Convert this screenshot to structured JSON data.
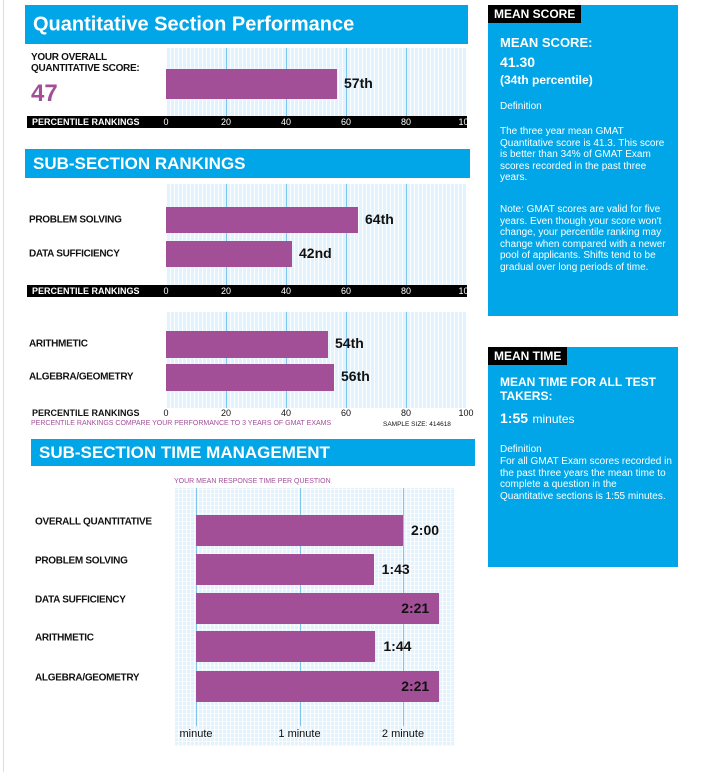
{
  "header": {
    "title": "Quantitative Section Performance"
  },
  "overall": {
    "label_line1": "YOUR OVERALL",
    "label_line2": "QUANTITATIVE SCORE:",
    "score": "47",
    "percentile_label": "57th"
  },
  "axis": {
    "title": "PERCENTILE RANKINGS",
    "ticks": [
      "0",
      "20",
      "40",
      "60",
      "80",
      "100"
    ]
  },
  "subsection": {
    "title": "SUB-SECTION RANKINGS",
    "footnote": "PERCENTILE RANKINGS COMPARE YOUR PERFORMANCE TO 3 YEARS OF GMAT EXAMS",
    "sample_size": "SAMPLE SIZE: 414618"
  },
  "time": {
    "title": "SUB-SECTION TIME MANAGEMENT",
    "subtitle": "YOUR MEAN RESPONSE TIME PER QUESTION",
    "ticks": [
      "minute",
      "1 minute",
      "2 minute"
    ]
  },
  "mean_score": {
    "tag": "MEAN SCORE",
    "heading": "MEAN SCORE:",
    "value": "41.30",
    "percentile": "(34th percentile)",
    "definition_label": "Definition",
    "definition": "The three year mean GMAT Quantitative score is 41.3. This score is better than 34% of GMAT Exam scores recorded in the past three years.",
    "note": "Note:  GMAT scores are valid for five years. Even though your score won't change, your percentile ranking may change when compared with a newer pool of applicants.  Shifts tend to be gradual over long periods of time."
  },
  "mean_time": {
    "tag": "MEAN TIME",
    "heading": "MEAN TIME FOR ALL TEST TAKERS:",
    "value": "1:55",
    "unit": "minutes",
    "definition_label": "Definition",
    "definition": "For all GMAT Exam scores recorded in the past three years the mean time to complete a question in the Quantitative sections is 1:55 minutes."
  },
  "colors": {
    "banner": "#00a6e8",
    "bar": "#a34f98",
    "grid": "#e3f3fd",
    "subtitle": "#a34f98"
  },
  "chart_data": [
    {
      "type": "bar",
      "categories": [
        "YOUR OVERALL QUANTITATIVE SCORE"
      ],
      "values": [
        57
      ],
      "value_labels": [
        "57th"
      ],
      "xlabel": "PERCENTILE RANKINGS",
      "xlim": [
        0,
        100
      ]
    },
    {
      "type": "bar",
      "categories": [
        "PROBLEM SOLVING",
        "DATA SUFFICIENCY"
      ],
      "values": [
        64,
        42
      ],
      "value_labels": [
        "64th",
        "42nd"
      ],
      "xlabel": "PERCENTILE RANKINGS",
      "xlim": [
        0,
        100
      ]
    },
    {
      "type": "bar",
      "categories": [
        "ARITHMETIC",
        "ALGEBRA/GEOMETRY"
      ],
      "values": [
        54,
        56
      ],
      "value_labels": [
        "54th",
        "56th"
      ],
      "xlabel": "PERCENTILE RANKINGS",
      "xlim": [
        0,
        100
      ]
    },
    {
      "type": "bar",
      "title": "YOUR MEAN RESPONSE TIME PER QUESTION",
      "categories": [
        "OVERALL QUANTITATIVE",
        "PROBLEM SOLVING",
        "DATA SUFFICIENCY",
        "ARITHMETIC",
        "ALGEBRA/GEOMETRY"
      ],
      "values": [
        120,
        103,
        141,
        104,
        141
      ],
      "value_labels": [
        "2:00",
        "1:43",
        "2:21",
        "1:44",
        "2:21"
      ],
      "value_unit": "seconds",
      "tick_labels": [
        "minute",
        "1 minute",
        "2 minute"
      ]
    }
  ]
}
